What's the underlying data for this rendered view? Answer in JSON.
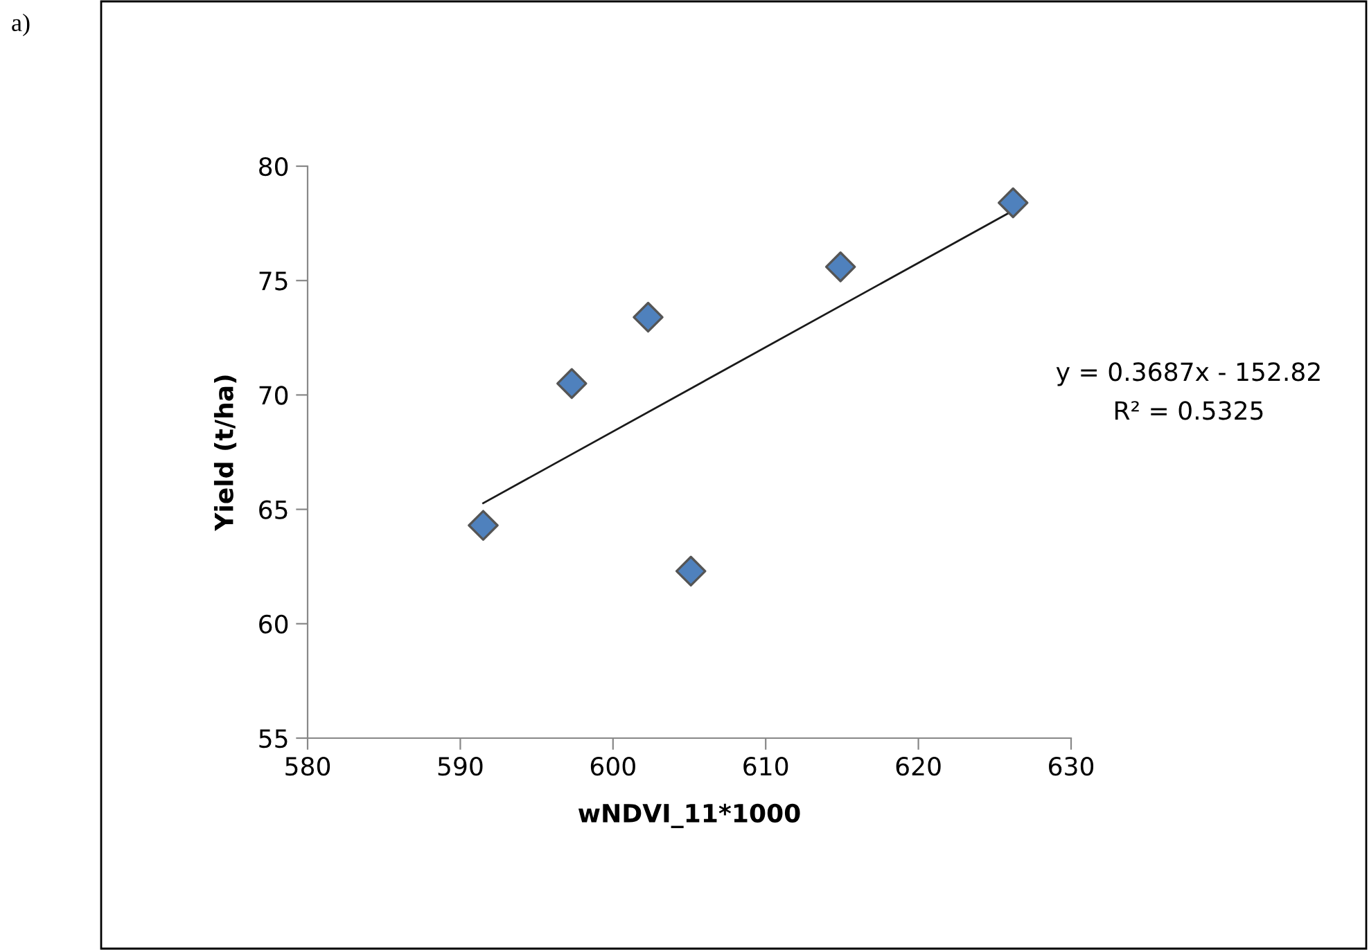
{
  "chart_data": {
    "type": "scatter",
    "xlabel": "wNDVI_11*1000",
    "ylabel": "Yield (t/ha)",
    "annotations": [
      "a)",
      "y = 0.3687x - 152.82",
      "R² = 0.5325"
    ],
    "series": [
      {
        "color": "#4f81bd",
        "x": [
          591.5,
          597.3,
          602.3,
          605.1,
          614.9,
          626.2
        ],
        "values": [
          64.3,
          70.5,
          73.4,
          62.3,
          75.6,
          78.4
        ],
        "marker": "diamond"
      },
      {
        "type": "line",
        "color": "#1a1a1a",
        "x": [
          591.5,
          626.2
        ],
        "values": [
          65.27,
          78.06
        ],
        "line_style": "solid"
      }
    ],
    "xlim": [
      580,
      630
    ],
    "xticks": [
      580,
      590,
      600,
      610,
      620,
      630
    ],
    "ylim": [
      55,
      80
    ],
    "yticks": [
      55,
      60,
      65,
      70,
      75,
      80
    ],
    "grid": false,
    "legend": false
  }
}
